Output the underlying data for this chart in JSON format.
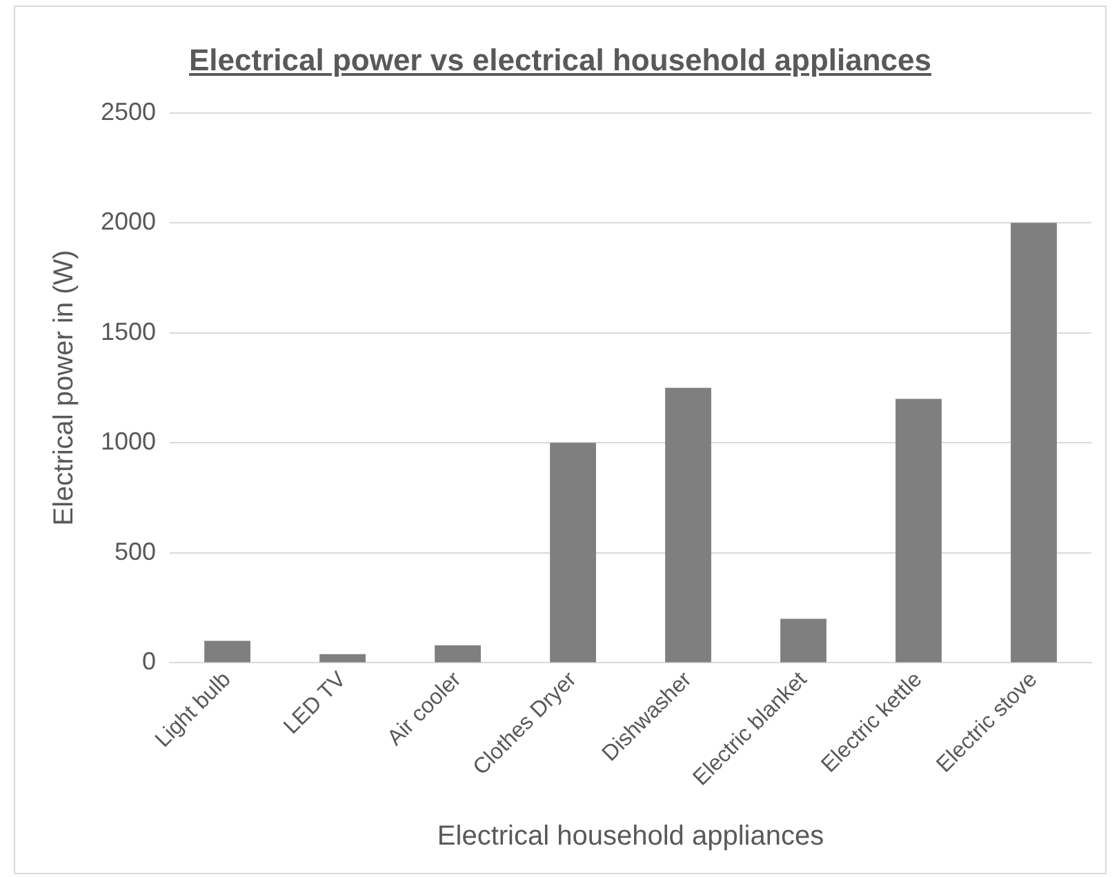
{
  "chart_data": {
    "type": "bar",
    "title": "Electrical power vs electrical household appliances",
    "xlabel": "Electrical household appliances",
    "ylabel": "Electrical power in (W)",
    "categories": [
      "Light bulb",
      "LED TV",
      "Air cooler",
      "Clothes Dryer",
      "Dishwasher",
      "Electric blanket",
      "Electric kettle",
      "Electric stove"
    ],
    "values": [
      100,
      40,
      80,
      1000,
      1250,
      200,
      1200,
      2000
    ],
    "color": "#7f7f7f",
    "ylim": [
      0,
      2500
    ],
    "yticks": [
      0,
      500,
      1000,
      1500,
      2000,
      2500
    ],
    "grid": "y",
    "legend": false
  }
}
